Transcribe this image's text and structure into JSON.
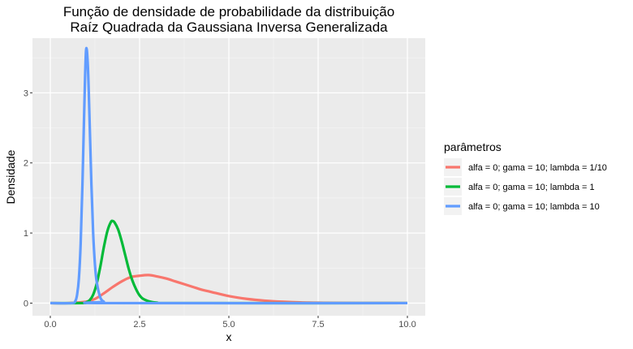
{
  "chart_data": {
    "type": "line",
    "title_lines": [
      "Função de densidade de probabilidade da distribuição",
      "Raíz Quadrada da Gaussiana Inversa Generalizada"
    ],
    "xlabel": "x",
    "ylabel": "Densidade",
    "xlim": [
      0,
      10
    ],
    "ylim": [
      0,
      3.6
    ],
    "x_ticks": [
      0,
      2.5,
      5,
      7.5,
      10
    ],
    "x_tick_labels": [
      "0.0",
      "2.5",
      "5.0",
      "7.5",
      "10.0"
    ],
    "y_ticks": [
      0,
      1,
      2,
      3
    ],
    "y_tick_labels": [
      "0",
      "1",
      "2",
      "3"
    ],
    "grid": true,
    "legend_title": "parâmetros",
    "legend_position": "right",
    "series": [
      {
        "name": "alfa = 0; gama = 10; lambda = 1/10",
        "color": "#F8766D",
        "x": [
          0,
          0.5,
          1.0,
          1.25,
          1.5,
          1.75,
          2.0,
          2.25,
          2.5,
          2.75,
          3.0,
          3.25,
          3.5,
          3.75,
          4.0,
          4.25,
          4.5,
          5.0,
          5.5,
          6.0,
          6.5,
          7.0,
          7.5,
          8.0,
          9.0,
          10.0
        ],
        "y": [
          0,
          0,
          0.02,
          0.06,
          0.14,
          0.23,
          0.31,
          0.37,
          0.39,
          0.4,
          0.38,
          0.35,
          0.31,
          0.27,
          0.23,
          0.19,
          0.16,
          0.1,
          0.06,
          0.035,
          0.02,
          0.01,
          0.005,
          0.003,
          0.001,
          0
        ]
      },
      {
        "name": "alfa = 0; gama = 10; lambda = 1",
        "color": "#00BA38",
        "x": [
          0,
          0.9,
          1.0,
          1.1,
          1.2,
          1.3,
          1.4,
          1.5,
          1.6,
          1.7,
          1.75,
          1.8,
          1.9,
          2.0,
          2.1,
          2.2,
          2.3,
          2.4,
          2.5,
          2.6,
          2.8,
          3.0,
          3.3,
          10.0
        ],
        "y": [
          0,
          0,
          0.01,
          0.04,
          0.12,
          0.28,
          0.52,
          0.8,
          1.03,
          1.16,
          1.17,
          1.15,
          1.05,
          0.88,
          0.68,
          0.48,
          0.32,
          0.2,
          0.11,
          0.06,
          0.02,
          0.005,
          0,
          0
        ]
      },
      {
        "name": "alfa = 0; gama = 10; lambda = 10",
        "color": "#619CFF",
        "x": [
          0,
          0.6,
          0.7,
          0.75,
          0.8,
          0.85,
          0.9,
          0.95,
          1.0,
          1.05,
          1.1,
          1.15,
          1.2,
          1.25,
          1.3,
          1.4,
          1.5,
          1.6,
          10.0
        ],
        "y": [
          0,
          0,
          0.03,
          0.12,
          0.35,
          0.85,
          1.7,
          2.75,
          3.6,
          3.4,
          2.6,
          1.7,
          1.0,
          0.55,
          0.3,
          0.08,
          0.02,
          0,
          0
        ]
      }
    ]
  }
}
